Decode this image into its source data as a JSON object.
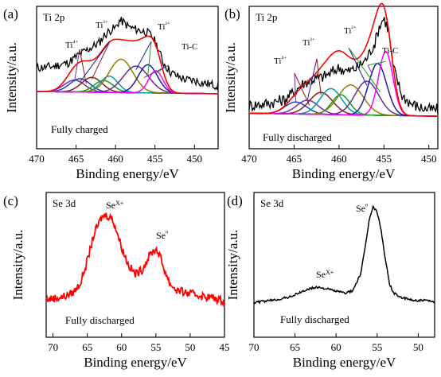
{
  "chart_data": [
    {
      "panel": "(a)",
      "type": "line",
      "core_level": "Ti 2p",
      "condition": "Fully charged",
      "xlabel": "Binding energy/eV",
      "ylabel": "Intensity/a.u.",
      "xlim": [
        470,
        447
      ],
      "xticks": [
        "470",
        "465",
        "460",
        "455",
        "450"
      ],
      "peak_labels": [
        "Ti⁴⁺",
        "Ti³⁺",
        "Ti²⁺",
        "Ti-C"
      ],
      "raw_x": [
        470,
        468,
        466,
        465,
        464,
        463,
        462,
        461.5,
        461,
        460.5,
        460,
        459.5,
        459,
        458.5,
        458,
        457,
        456,
        455.5,
        455,
        454.5,
        454,
        453,
        452,
        451,
        450,
        449,
        448,
        447
      ],
      "raw_y": [
        0.36,
        0.38,
        0.43,
        0.51,
        0.58,
        0.64,
        0.71,
        0.79,
        0.84,
        0.88,
        0.9,
        1.0,
        0.98,
        0.93,
        0.9,
        0.87,
        0.84,
        0.8,
        0.72,
        0.6,
        0.44,
        0.3,
        0.24,
        0.2,
        0.19,
        0.16,
        0.14,
        0.12
      ],
      "components": [
        {
          "center": 465.2,
          "height": 0.16,
          "width": 1.3,
          "color": "#7030a0"
        },
        {
          "center": 464.5,
          "height": 0.18,
          "width": 1.3,
          "color": "#1f3fc8"
        },
        {
          "center": 463.0,
          "height": 0.2,
          "width": 1.3,
          "color": "#8b1a1a"
        },
        {
          "center": 461.5,
          "height": 0.16,
          "width": 1.2,
          "color": "#1b9e1b"
        },
        {
          "center": 460.8,
          "height": 0.22,
          "width": 1.1,
          "color": "#00a0a0"
        },
        {
          "center": 459.3,
          "height": 0.45,
          "width": 1.5,
          "color": "#8b7d00"
        },
        {
          "center": 457.4,
          "height": 0.36,
          "width": 1.6,
          "color": "#6a2c91"
        },
        {
          "center": 455.9,
          "height": 0.38,
          "width": 1.2,
          "color": "#1a1aa6"
        },
        {
          "center": 454.9,
          "height": 0.3,
          "width": 0.9,
          "color": "#ff00ff"
        }
      ]
    },
    {
      "panel": "(b)",
      "type": "line",
      "core_level": "Ti 2p",
      "condition": "Fully discharged",
      "xlabel": "Binding energy/eV",
      "ylabel": "Intensity/a.u.",
      "xlim": [
        470,
        449
      ],
      "xticks": [
        "470",
        "465",
        "460",
        "455",
        "450"
      ],
      "peak_labels": [
        "Ti⁴⁺",
        "Ti³⁺",
        "Ti²⁺",
        "Ti-C"
      ],
      "raw_x": [
        470,
        468,
        466,
        465,
        464,
        463,
        462,
        461,
        460,
        459,
        458,
        457,
        456,
        455.5,
        455,
        454.5,
        454,
        453,
        452,
        451,
        450
      ],
      "raw_y": [
        0.12,
        0.14,
        0.18,
        0.26,
        0.34,
        0.38,
        0.4,
        0.44,
        0.5,
        0.46,
        0.5,
        0.58,
        0.75,
        0.92,
        1.0,
        0.88,
        0.52,
        0.22,
        0.14,
        0.1,
        0.08
      ],
      "components": [
        {
          "center": 464.8,
          "height": 0.12,
          "width": 1.2,
          "color": "#1f3fc8"
        },
        {
          "center": 463.5,
          "height": 0.14,
          "width": 1.2,
          "color": "#7030a0"
        },
        {
          "center": 462.0,
          "height": 0.22,
          "width": 1.3,
          "color": "#8b1a1a"
        },
        {
          "center": 460.9,
          "height": 0.26,
          "width": 1.2,
          "color": "#00a0a0"
        },
        {
          "center": 459.8,
          "height": 0.2,
          "width": 1.0,
          "color": "#1b9e1b"
        },
        {
          "center": 458.7,
          "height": 0.3,
          "width": 1.4,
          "color": "#8b7d00"
        },
        {
          "center": 456.9,
          "height": 0.34,
          "width": 1.3,
          "color": "#6a2c91"
        },
        {
          "center": 455.7,
          "height": 0.52,
          "width": 1.0,
          "color": "#1a1aa6"
        },
        {
          "center": 454.8,
          "height": 0.64,
          "width": 0.8,
          "color": "#ff00ff"
        }
      ]
    },
    {
      "panel": "(c)",
      "type": "line",
      "core_level": "Se 3d",
      "condition": "Fully discharged",
      "xlabel": "Binding energy/eV",
      "ylabel": "Intensity/a.u.",
      "xlim": [
        71,
        45
      ],
      "xticks": [
        "70",
        "65",
        "60",
        "55",
        "50",
        "45"
      ],
      "peak_labels": [
        "Se^X+",
        "Se⁰"
      ],
      "line_color": "#ff0000",
      "x": [
        71,
        70,
        69,
        68,
        67,
        66,
        65,
        64,
        63,
        62.5,
        62,
        61.5,
        61,
        60,
        59,
        58,
        57,
        56,
        55.5,
        55,
        54.5,
        54,
        53,
        52,
        51,
        50,
        49,
        48,
        47,
        46,
        45
      ],
      "y": [
        0.02,
        0.03,
        0.04,
        0.06,
        0.1,
        0.2,
        0.45,
        0.75,
        0.92,
        0.96,
        0.95,
        0.93,
        0.85,
        0.6,
        0.4,
        0.3,
        0.35,
        0.5,
        0.55,
        0.58,
        0.52,
        0.4,
        0.2,
        0.12,
        0.1,
        0.08,
        0.07,
        0.05,
        0.04,
        0.02,
        0.0
      ]
    },
    {
      "panel": "(d)",
      "type": "line",
      "core_level": "Se 3d",
      "condition": "Fully discharged",
      "xlabel": "Binding energy/eV",
      "ylabel": "Intensity/a.u.",
      "xlim": [
        70,
        48
      ],
      "xticks": [
        "70",
        "65",
        "60",
        "55",
        "50"
      ],
      "peak_labels": [
        "Se^X+",
        "Se⁰"
      ],
      "line_color": "#000000",
      "x": [
        70,
        68,
        66,
        65,
        64,
        63,
        62,
        61,
        60,
        59,
        58,
        57,
        56.5,
        56,
        55.5,
        55,
        54.5,
        54,
        53.5,
        53,
        52,
        51,
        50,
        49,
        48
      ],
      "y": [
        0.0,
        0.02,
        0.05,
        0.08,
        0.12,
        0.15,
        0.16,
        0.14,
        0.12,
        0.1,
        0.12,
        0.3,
        0.55,
        0.85,
        1.0,
        0.95,
        0.75,
        0.45,
        0.2,
        0.1,
        0.05,
        0.03,
        0.02,
        0.02,
        0.0
      ]
    }
  ]
}
